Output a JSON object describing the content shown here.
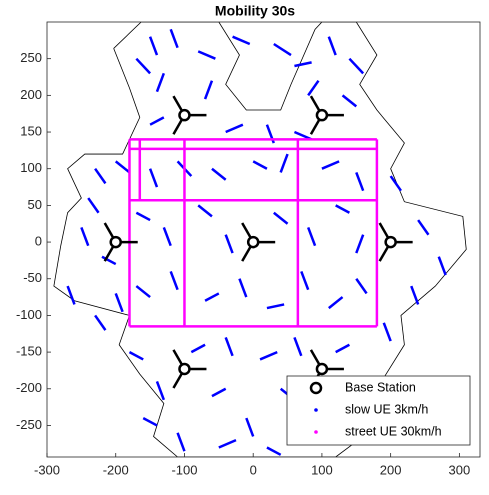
{
  "chart_data": {
    "type": "mobility",
    "title": "Mobility 30s",
    "xlim": [
      -300,
      330
    ],
    "ylim": [
      -293,
      300
    ],
    "xticks": [
      -300,
      -200,
      -100,
      0,
      100,
      200,
      300
    ],
    "yticks": [
      -250,
      -200,
      -150,
      -100,
      -50,
      0,
      50,
      100,
      150,
      200,
      250
    ],
    "legend": "lower right",
    "cell_boundary": {
      "x": [
        -203,
        -163,
        -50,
        -20,
        -40,
        -10,
        40,
        55,
        90,
        100,
        150,
        180,
        155,
        180,
        220,
        200,
        220,
        305,
        310,
        265,
        215,
        220,
        190,
        160,
        160,
        120,
        -110,
        -145,
        -130,
        -165,
        -195,
        -180,
        -260,
        -290,
        -280,
        -270,
        -250,
        -270,
        -245,
        -190,
        -165,
        -180,
        -203
      ],
      "y": [
        264,
        300,
        300,
        255,
        215,
        180,
        180,
        215,
        290,
        300,
        300,
        255,
        215,
        180,
        135,
        100,
        55,
        35,
        -10,
        -60,
        -100,
        -140,
        -185,
        -225,
        -265,
        -293,
        -293,
        -265,
        -220,
        -180,
        -140,
        -100,
        -80,
        -60,
        -5,
        40,
        60,
        100,
        120,
        120,
        170,
        210,
        264
      ]
    },
    "series": [
      {
        "name": "Base Station",
        "color": "#000000",
        "x": [
          -100,
          100,
          -200,
          0,
          200,
          -100,
          100
        ],
        "y": [
          173,
          173,
          0,
          0,
          0,
          -173,
          -173
        ]
      },
      {
        "name": "slow UE 3km/h",
        "color": "#0000ff",
        "segments": [
          [
            -150,
            280,
            -140,
            255
          ],
          [
            -120,
            290,
            -110,
            265
          ],
          [
            -170,
            250,
            -150,
            230
          ],
          [
            -130,
            230,
            -140,
            205
          ],
          [
            -80,
            260,
            -55,
            250
          ],
          [
            -60,
            220,
            -70,
            195
          ],
          [
            -30,
            280,
            -5,
            270
          ],
          [
            30,
            270,
            55,
            255
          ],
          [
            60,
            240,
            85,
            245
          ],
          [
            110,
            280,
            120,
            255
          ],
          [
            140,
            250,
            160,
            230
          ],
          [
            80,
            200,
            95,
            220
          ],
          [
            130,
            200,
            150,
            185
          ],
          [
            -40,
            150,
            -15,
            160
          ],
          [
            20,
            160,
            30,
            135
          ],
          [
            60,
            150,
            85,
            140
          ],
          [
            -150,
            160,
            -130,
            170
          ],
          [
            -230,
            100,
            -215,
            80
          ],
          [
            -200,
            110,
            -180,
            95
          ],
          [
            -150,
            100,
            -140,
            75
          ],
          [
            -110,
            110,
            -90,
            90
          ],
          [
            -60,
            100,
            -40,
            85
          ],
          [
            0,
            110,
            20,
            100
          ],
          [
            50,
            120,
            40,
            95
          ],
          [
            100,
            100,
            125,
            110
          ],
          [
            150,
            95,
            160,
            70
          ],
          [
            200,
            90,
            215,
            70
          ],
          [
            -250,
            20,
            -240,
            -5
          ],
          [
            -220,
            -20,
            -200,
            -30
          ],
          [
            -270,
            -60,
            -260,
            -85
          ],
          [
            -170,
            40,
            -150,
            30
          ],
          [
            -130,
            20,
            -120,
            -5
          ],
          [
            -80,
            50,
            -60,
            35
          ],
          [
            -40,
            10,
            -30,
            -15
          ],
          [
            30,
            40,
            50,
            25
          ],
          [
            80,
            20,
            90,
            -5
          ],
          [
            120,
            50,
            140,
            40
          ],
          [
            160,
            10,
            150,
            -15
          ],
          [
            240,
            30,
            255,
            10
          ],
          [
            270,
            -20,
            280,
            -45
          ],
          [
            230,
            -60,
            240,
            -85
          ],
          [
            -230,
            -100,
            -215,
            -120
          ],
          [
            -170,
            -60,
            -150,
            -75
          ],
          [
            -120,
            -40,
            -110,
            -65
          ],
          [
            -70,
            -80,
            -50,
            -70
          ],
          [
            -20,
            -50,
            -10,
            -75
          ],
          [
            20,
            -90,
            45,
            -85
          ],
          [
            70,
            -40,
            80,
            -65
          ],
          [
            110,
            -90,
            130,
            -75
          ],
          [
            150,
            -50,
            165,
            -70
          ],
          [
            190,
            -110,
            200,
            -135
          ],
          [
            -180,
            -150,
            -160,
            -160
          ],
          [
            -140,
            -190,
            -130,
            -215
          ],
          [
            -90,
            -150,
            -70,
            -140
          ],
          [
            -40,
            -130,
            -30,
            -155
          ],
          [
            10,
            -160,
            35,
            -150
          ],
          [
            60,
            -130,
            70,
            -155
          ],
          [
            120,
            -150,
            140,
            -140
          ],
          [
            -160,
            -240,
            -140,
            -250
          ],
          [
            -110,
            -260,
            -100,
            -285
          ],
          [
            -60,
            -210,
            -40,
            -200
          ],
          [
            -10,
            -240,
            0,
            -265
          ],
          [
            40,
            -200,
            60,
            -215
          ],
          [
            80,
            -250,
            90,
            -275
          ],
          [
            130,
            -220,
            150,
            -230
          ],
          [
            -50,
            -280,
            -25,
            -270
          ],
          [
            20,
            -280,
            40,
            -290
          ],
          [
            -240,
            60,
            -225,
            40
          ],
          [
            -200,
            -70,
            -190,
            -95
          ],
          [
            100,
            -200,
            110,
            -225
          ]
        ]
      },
      {
        "name": "street UE 30km/h",
        "color": "#ff00ff",
        "segments": [
          [
            -180,
            140,
            180,
            140
          ],
          [
            -180,
            127,
            180,
            127
          ],
          [
            -180,
            57,
            180,
            57
          ],
          [
            -180,
            -115,
            180,
            -115
          ],
          [
            -180,
            140,
            -180,
            -115
          ],
          [
            -100,
            140,
            -100,
            -115
          ],
          [
            65,
            140,
            65,
            -115
          ],
          [
            180,
            140,
            180,
            -115
          ],
          [
            -165,
            140,
            -165,
            57
          ]
        ]
      }
    ]
  }
}
